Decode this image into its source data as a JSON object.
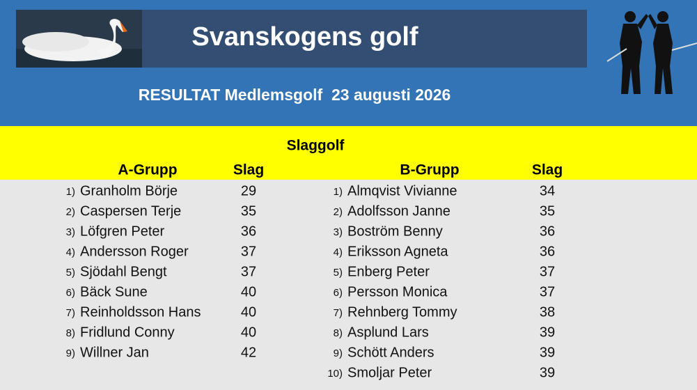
{
  "header": {
    "title": "Svanskogens golf",
    "subtitle": "RESULTAT Medlemsgolf  23 augusti 2026"
  },
  "section": {
    "title": "Slaggolf"
  },
  "groups": [
    {
      "name": "A-Grupp",
      "score_label": "Slag",
      "rows": [
        [
          "1)",
          "Granholm Börje",
          29
        ],
        [
          "2)",
          "Caspersen Terje",
          35
        ],
        [
          "3)",
          "Löfgren Peter",
          36
        ],
        [
          "4)",
          "Andersson Roger",
          37
        ],
        [
          "5)",
          "Sjödahl Bengt",
          37
        ],
        [
          "6)",
          "Bäck Sune",
          40
        ],
        [
          "7)",
          "Reinholdsson Hans",
          40
        ],
        [
          "8)",
          "Fridlund Conny",
          40
        ],
        [
          "9)",
          "Willner Jan",
          42
        ]
      ]
    },
    {
      "name": "B-Grupp",
      "score_label": "Slag",
      "rows": [
        [
          "1)",
          "Almqvist Vivianne",
          34
        ],
        [
          "2)",
          "Adolfsson Janne",
          35
        ],
        [
          "3)",
          "Boström Benny",
          36
        ],
        [
          "4)",
          "Eriksson Agneta",
          36
        ],
        [
          "5)",
          "Enberg Peter",
          37
        ],
        [
          "6)",
          "Persson Monica",
          37
        ],
        [
          "7)",
          "Rehnberg Tommy",
          38
        ],
        [
          "8)",
          "Asplund Lars",
          39
        ],
        [
          "9)",
          "Schött Anders",
          39
        ],
        [
          "10)",
          "Smoljar Peter",
          39
        ]
      ]
    }
  ]
}
